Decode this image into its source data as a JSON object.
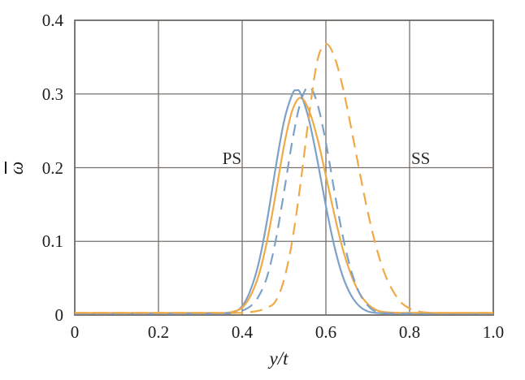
{
  "figure": {
    "background": "#ffffff"
  },
  "chart_data": {
    "type": "line",
    "title": "",
    "xlabel": "y/t",
    "ylabel": "ω",
    "ylabel_overbar": true,
    "xlim": [
      0,
      1.0
    ],
    "ylim": [
      0,
      0.4
    ],
    "grid": true,
    "legend": null,
    "axis_color": "#6e6a66",
    "grid_color": "#75706b",
    "text_color": "#1d1d1b",
    "xticks": {
      "values": [
        0,
        0.2,
        0.4,
        0.6,
        0.8,
        1.0
      ],
      "labels": [
        "0",
        "0.2",
        "0.4",
        "0.6",
        "0.8",
        "1.0"
      ]
    },
    "yticks": {
      "values": [
        0,
        0.1,
        0.2,
        0.3,
        0.4
      ],
      "labels": [
        "0",
        "0.1",
        "0.2",
        "0.3",
        "0.4"
      ]
    },
    "annotations": [
      {
        "text": "PS",
        "x": 0.395,
        "y": 0.205,
        "align": "right"
      },
      {
        "text": "SS",
        "x": 0.803,
        "y": 0.205,
        "align": "left"
      }
    ],
    "series": [
      {
        "name": "solid-blue",
        "style": "solid",
        "color": "#7da1c9",
        "width": 2.2,
        "dash": null,
        "points": [
          [
            0,
            0.002
          ],
          [
            0.1,
            0.002
          ],
          [
            0.2,
            0.002
          ],
          [
            0.3,
            0.002
          ],
          [
            0.36,
            0.002
          ],
          [
            0.38,
            0.004
          ],
          [
            0.4,
            0.012
          ],
          [
            0.42,
            0.034
          ],
          [
            0.44,
            0.072
          ],
          [
            0.46,
            0.13
          ],
          [
            0.48,
            0.2
          ],
          [
            0.5,
            0.263
          ],
          [
            0.52,
            0.3
          ],
          [
            0.53,
            0.305
          ],
          [
            0.54,
            0.3
          ],
          [
            0.56,
            0.264
          ],
          [
            0.58,
            0.209
          ],
          [
            0.6,
            0.148
          ],
          [
            0.62,
            0.094
          ],
          [
            0.64,
            0.053
          ],
          [
            0.66,
            0.027
          ],
          [
            0.68,
            0.012
          ],
          [
            0.7,
            0.005
          ],
          [
            0.72,
            0.003
          ],
          [
            0.76,
            0.002
          ],
          [
            0.85,
            0.002
          ],
          [
            1,
            0.002
          ]
        ]
      },
      {
        "name": "solid-orange",
        "style": "solid",
        "color": "#f0aa45",
        "width": 2.2,
        "dash": null,
        "points": [
          [
            0,
            0.003
          ],
          [
            0.1,
            0.003
          ],
          [
            0.2,
            0.003
          ],
          [
            0.3,
            0.003
          ],
          [
            0.36,
            0.003
          ],
          [
            0.38,
            0.005
          ],
          [
            0.4,
            0.01
          ],
          [
            0.42,
            0.026
          ],
          [
            0.44,
            0.055
          ],
          [
            0.46,
            0.102
          ],
          [
            0.48,
            0.164
          ],
          [
            0.5,
            0.23
          ],
          [
            0.52,
            0.278
          ],
          [
            0.54,
            0.295
          ],
          [
            0.56,
            0.277
          ],
          [
            0.58,
            0.239
          ],
          [
            0.6,
            0.189
          ],
          [
            0.62,
            0.137
          ],
          [
            0.64,
            0.09
          ],
          [
            0.66,
            0.055
          ],
          [
            0.68,
            0.03
          ],
          [
            0.7,
            0.015
          ],
          [
            0.72,
            0.007
          ],
          [
            0.74,
            0.004
          ],
          [
            0.78,
            0.003
          ],
          [
            0.85,
            0.003
          ],
          [
            1,
            0.003
          ]
        ]
      },
      {
        "name": "dashed-blue",
        "style": "dashed",
        "color": "#7da1c9",
        "width": 2.2,
        "dash": "14 9",
        "points": [
          [
            0,
            0.002
          ],
          [
            0.1,
            0.002
          ],
          [
            0.2,
            0.002
          ],
          [
            0.3,
            0.002
          ],
          [
            0.38,
            0.003
          ],
          [
            0.4,
            0.006
          ],
          [
            0.42,
            0.012
          ],
          [
            0.44,
            0.026
          ],
          [
            0.46,
            0.053
          ],
          [
            0.48,
            0.101
          ],
          [
            0.5,
            0.167
          ],
          [
            0.52,
            0.237
          ],
          [
            0.54,
            0.29
          ],
          [
            0.56,
            0.31
          ],
          [
            0.58,
            0.286
          ],
          [
            0.6,
            0.234
          ],
          [
            0.62,
            0.169
          ],
          [
            0.64,
            0.108
          ],
          [
            0.66,
            0.061
          ],
          [
            0.68,
            0.03
          ],
          [
            0.7,
            0.013
          ],
          [
            0.72,
            0.005
          ],
          [
            0.76,
            0.002
          ],
          [
            0.85,
            0.002
          ],
          [
            1,
            0.002
          ]
        ]
      },
      {
        "name": "dashed-orange",
        "style": "dashed",
        "color": "#f0aa45",
        "width": 2.2,
        "dash": "15 9",
        "points": [
          [
            0,
            0.003
          ],
          [
            0.1,
            0.003
          ],
          [
            0.2,
            0.003
          ],
          [
            0.3,
            0.003
          ],
          [
            0.4,
            0.003
          ],
          [
            0.42,
            0.004
          ],
          [
            0.44,
            0.006
          ],
          [
            0.46,
            0.01
          ],
          [
            0.48,
            0.019
          ],
          [
            0.5,
            0.048
          ],
          [
            0.52,
            0.102
          ],
          [
            0.54,
            0.181
          ],
          [
            0.56,
            0.272
          ],
          [
            0.58,
            0.346
          ],
          [
            0.6,
            0.368
          ],
          [
            0.62,
            0.351
          ],
          [
            0.64,
            0.31
          ],
          [
            0.66,
            0.255
          ],
          [
            0.68,
            0.196
          ],
          [
            0.7,
            0.14
          ],
          [
            0.72,
            0.093
          ],
          [
            0.74,
            0.057
          ],
          [
            0.76,
            0.033
          ],
          [
            0.78,
            0.017
          ],
          [
            0.8,
            0.009
          ],
          [
            0.82,
            0.005
          ],
          [
            0.86,
            0.003
          ],
          [
            1,
            0.003
          ]
        ]
      }
    ]
  }
}
